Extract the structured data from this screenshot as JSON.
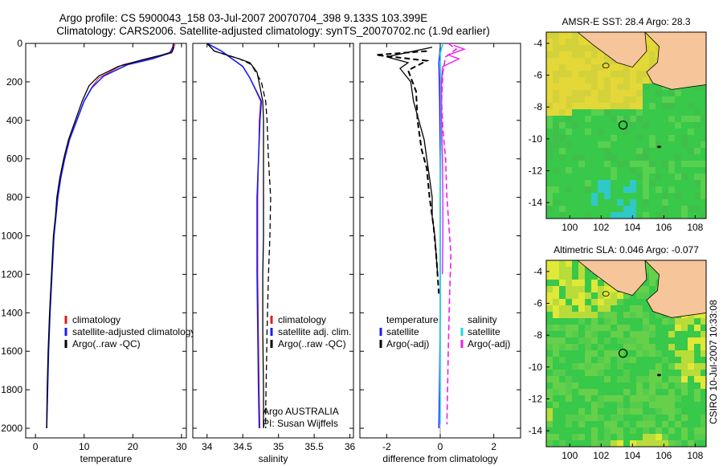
{
  "colors": {
    "red": "#e01b1b",
    "blue": "#1a1aff",
    "black": "#000000",
    "cyan": "#22d3e6",
    "magenta": "#f01cf0",
    "land": "#f6c59a",
    "sea_green": "#38c84a",
    "sea_yellow": "#c8e030",
    "sea_cyan": "#30c8c8"
  },
  "header": {
    "line1": "Argo profile: CS 5900043_158 03-Jul-2007 20070704_398 9.133S 103.399E",
    "line2": "Climatology: CARS2006. Satellite-adjusted climatology: synTS_20070702.nc (1.9d earlier)"
  },
  "credit": "CSIRO 10-Jul-2007 10:33:08",
  "chart_data": [
    {
      "type": "line",
      "id": "temperature",
      "xlabel": "temperature",
      "xlim": [
        -2,
        31
      ],
      "ylim": [
        0,
        2050
      ],
      "yticks": [
        0,
        200,
        400,
        600,
        800,
        1000,
        1200,
        1400,
        1600,
        1800,
        2000
      ],
      "xticks": [
        0,
        10,
        20,
        30
      ],
      "legend": [
        "climatology",
        "satellite-adjusted climatology",
        "Argo(..raw -QC)"
      ],
      "series": [
        {
          "name": "climatology",
          "color": "red",
          "dash": false,
          "width": 1,
          "points": [
            [
              28.7,
              0
            ],
            [
              28.5,
              20
            ],
            [
              28,
              50
            ],
            [
              24,
              75
            ],
            [
              18,
              110
            ],
            [
              13,
              180
            ],
            [
              11.5,
              230
            ],
            [
              10,
              300
            ],
            [
              8.5,
              400
            ],
            [
              7,
              500
            ],
            [
              6,
              600
            ],
            [
              5.2,
              700
            ],
            [
              4.6,
              800
            ],
            [
              4.2,
              900
            ],
            [
              3.8,
              1000
            ],
            [
              3.4,
              1200
            ],
            [
              3.0,
              1400
            ],
            [
              2.7,
              1600
            ],
            [
              2.5,
              1800
            ],
            [
              2.3,
              2000
            ]
          ]
        },
        {
          "name": "satellite-adjusted climatology",
          "color": "blue",
          "dash": false,
          "width": 1.6,
          "points": [
            [
              28.4,
              0
            ],
            [
              28.2,
              20
            ],
            [
              27.6,
              50
            ],
            [
              24,
              80
            ],
            [
              19,
              110
            ],
            [
              14,
              170
            ],
            [
              11.6,
              230
            ],
            [
              10,
              300
            ],
            [
              8.5,
              400
            ],
            [
              7,
              500
            ],
            [
              6,
              600
            ],
            [
              5.2,
              700
            ],
            [
              4.6,
              800
            ],
            [
              4.2,
              900
            ],
            [
              3.8,
              1000
            ],
            [
              3.4,
              1200
            ],
            [
              3.0,
              1400
            ],
            [
              2.7,
              1600
            ],
            [
              2.5,
              1800
            ],
            [
              2.3,
              2000
            ]
          ]
        },
        {
          "name": "Argo(..raw -QC)",
          "color": "black",
          "dash": false,
          "width": 1.3,
          "points": [
            [
              28.3,
              0
            ],
            [
              28.3,
              30
            ],
            [
              28,
              45
            ],
            [
              26,
              60
            ],
            [
              22,
              85
            ],
            [
              17,
              120
            ],
            [
              13,
              170
            ],
            [
              11,
              220
            ],
            [
              9.6,
              300
            ],
            [
              8.2,
              400
            ],
            [
              6.8,
              500
            ],
            [
              5.8,
              600
            ],
            [
              5.0,
              700
            ],
            [
              4.4,
              800
            ],
            [
              4.1,
              900
            ],
            [
              3.7,
              1000
            ],
            [
              3.3,
              1200
            ],
            [
              2.9,
              1400
            ],
            [
              2.6,
              1600
            ],
            [
              2.4,
              1800
            ],
            [
              2.3,
              2000
            ]
          ]
        }
      ]
    },
    {
      "type": "line",
      "id": "salinity",
      "xlabel": "salinity",
      "xlim": [
        33.8,
        36.05
      ],
      "ylim": [
        0,
        2050
      ],
      "xticks": [
        34,
        34.5,
        35,
        35.5,
        36
      ],
      "legend": [
        "climatology",
        "satellite adj. clim.",
        "Argo(..raw -QC)"
      ],
      "annotation": [
        "Argo AUSTRALIA",
        "PI: Susan Wijffels"
      ],
      "series": [
        {
          "name": "climatology",
          "color": "red",
          "dash": false,
          "width": 1,
          "points": [
            [
              34.0,
              0
            ],
            [
              34.2,
              40
            ],
            [
              34.5,
              120
            ],
            [
              34.6,
              180
            ],
            [
              34.75,
              300
            ],
            [
              34.73,
              400
            ],
            [
              34.72,
              600
            ],
            [
              34.71,
              800
            ],
            [
              34.71,
              1000
            ],
            [
              34.71,
              1200
            ],
            [
              34.72,
              1500
            ],
            [
              34.73,
              1800
            ],
            [
              34.74,
              2000
            ]
          ]
        },
        {
          "name": "satellite adj. clim.",
          "color": "blue",
          "dash": false,
          "width": 1.6,
          "points": [
            [
              34.0,
              0
            ],
            [
              34.2,
              40
            ],
            [
              34.5,
              120
            ],
            [
              34.6,
              180
            ],
            [
              34.76,
              300
            ],
            [
              34.74,
              400
            ],
            [
              34.72,
              600
            ],
            [
              34.7,
              800
            ],
            [
              34.7,
              1000
            ],
            [
              34.7,
              1200
            ],
            [
              34.71,
              1500
            ],
            [
              34.72,
              1800
            ],
            [
              34.73,
              2000
            ]
          ]
        },
        {
          "name": "Argo(..raw -QC)",
          "color": "black",
          "dash": false,
          "width": 1.3,
          "points": [
            [
              34.0,
              0
            ],
            [
              34.1,
              40
            ],
            [
              34.45,
              80
            ],
            [
              34.6,
              100
            ],
            [
              34.7,
              150
            ],
            [
              34.78,
              300
            ],
            [
              34.79,
              400
            ],
            [
              34.79,
              600
            ],
            [
              34.79,
              800
            ],
            [
              34.79,
              1000
            ],
            [
              34.78,
              1200
            ],
            [
              34.78,
              1500
            ],
            [
              34.79,
              1800
            ],
            [
              34.79,
              2000
            ]
          ]
        },
        {
          "name": "Argo(..raw -QC) adjusted",
          "color": "black",
          "dash": true,
          "width": 1.3,
          "points": [
            [
              34.0,
              0
            ],
            [
              34.1,
              40
            ],
            [
              34.45,
              80
            ],
            [
              34.62,
              110
            ],
            [
              34.76,
              200
            ],
            [
              34.82,
              300
            ],
            [
              34.84,
              400
            ],
            [
              34.86,
              600
            ],
            [
              34.89,
              800
            ],
            [
              34.88,
              1000
            ],
            [
              34.86,
              1200
            ],
            [
              34.84,
              1500
            ],
            [
              34.83,
              1700
            ],
            [
              34.82,
              1900
            ],
            [
              34.82,
              2000
            ]
          ]
        }
      ]
    },
    {
      "type": "line",
      "id": "difference",
      "xlabel": "difference from climatology",
      "xlim": [
        -3,
        3
      ],
      "ylim": [
        0,
        2050
      ],
      "xticks": [
        -2,
        0,
        2
      ],
      "legend_left": [
        "temperature",
        "satellite",
        "Argo(-adj)"
      ],
      "legend_right": [
        "salinity",
        "satellite",
        "Argo(-adj)"
      ],
      "series": [
        {
          "name": "temperature satellite",
          "color": "blue",
          "dash": false,
          "width": 1.4,
          "points": [
            [
              0.0,
              20
            ],
            [
              -0.05,
              100
            ],
            [
              -0.02,
              300
            ],
            [
              0,
              600
            ],
            [
              0,
              1000
            ],
            [
              0,
              1400
            ],
            [
              -0.02,
              1700
            ],
            [
              -0.05,
              2000
            ]
          ]
        },
        {
          "name": "temperature Argo",
          "color": "black",
          "dash": false,
          "width": 1.3,
          "points": [
            [
              -0.3,
              20
            ],
            [
              -2.0,
              70
            ],
            [
              -1.2,
              100
            ],
            [
              -1.5,
              130
            ],
            [
              -1.1,
              200
            ],
            [
              -1.0,
              300
            ],
            [
              -0.8,
              400
            ],
            [
              -0.6,
              500
            ],
            [
              -0.5,
              600
            ],
            [
              -0.4,
              700
            ],
            [
              -0.3,
              800
            ],
            [
              -0.3,
              900
            ],
            [
              -0.2,
              1000
            ],
            [
              -0.1,
              1200
            ]
          ]
        },
        {
          "name": "temperature Argo-adj",
          "color": "black",
          "dash": true,
          "width": 2,
          "points": [
            [
              -0.5,
              40
            ],
            [
              -2.4,
              60
            ],
            [
              -0.5,
              90
            ],
            [
              -1.2,
              140
            ],
            [
              -0.9,
              250
            ],
            [
              -0.85,
              400
            ],
            [
              -0.7,
              550
            ],
            [
              -0.5,
              650
            ],
            [
              -0.4,
              800
            ],
            [
              -0.25,
              950
            ],
            [
              -0.15,
              1100
            ],
            [
              -0.05,
              1300
            ]
          ]
        },
        {
          "name": "salinity satellite",
          "color": "cyan",
          "dash": false,
          "width": 1.6,
          "points": [
            [
              0.1,
              0
            ],
            [
              0.0,
              50
            ],
            [
              0.03,
              200
            ],
            [
              0.02,
              500
            ],
            [
              0.0,
              800
            ],
            [
              0.0,
              1100
            ],
            [
              0.0,
              1400
            ],
            [
              0.0,
              1700
            ],
            [
              0.0,
              1980
            ]
          ]
        },
        {
          "name": "salinity Argo",
          "color": "magenta",
          "dash": false,
          "width": 1.4,
          "points": [
            [
              0.5,
              10
            ],
            [
              0.9,
              30
            ],
            [
              0.3,
              60
            ],
            [
              0.7,
              80
            ],
            [
              0.1,
              120
            ],
            [
              0.05,
              200
            ],
            [
              0.05,
              400
            ],
            [
              0.08,
              600
            ],
            [
              0.1,
              800
            ],
            [
              0.1,
              1000
            ],
            [
              0.08,
              1200
            ]
          ]
        },
        {
          "name": "salinity Argo-adj",
          "color": "magenta",
          "dash": true,
          "width": 1.6,
          "points": [
            [
              0.3,
              0
            ],
            [
              0.6,
              30
            ],
            [
              0.2,
              70
            ],
            [
              0.1,
              150
            ],
            [
              0.05,
              300
            ],
            [
              0.1,
              450
            ],
            [
              0.2,
              600
            ],
            [
              0.25,
              800
            ],
            [
              0.35,
              1000
            ],
            [
              0.4,
              1100
            ],
            [
              0.35,
              1300
            ],
            [
              0.3,
              1600
            ],
            [
              0.25,
              1980
            ]
          ]
        }
      ]
    },
    {
      "type": "heatmap",
      "id": "sst-map",
      "title": "AMSR-E SST: 28.4  Argo: 28.3",
      "xlim": [
        98.5,
        108.7
      ],
      "ylim": [
        -15,
        -3.3
      ],
      "xticks": [
        100,
        102,
        104,
        106,
        108
      ],
      "yticks": [
        -4,
        -6,
        -8,
        -10,
        -12,
        -14
      ],
      "float": [
        103.399,
        -9.133
      ],
      "values_desc": "warm coastal band near Sumatra/Java, green open ocean, cyan patches"
    },
    {
      "type": "heatmap",
      "id": "sla-map",
      "title": "Altimetric SLA: 0.046  Argo: -0.077",
      "xlim": [
        98.5,
        108.7
      ],
      "ylim": [
        -15,
        -3.3
      ],
      "xticks": [
        100,
        102,
        104,
        106,
        108
      ],
      "yticks": [
        -4,
        -6,
        -8,
        -10,
        -12,
        -14
      ],
      "float": [
        103.399,
        -9.133
      ]
    }
  ]
}
